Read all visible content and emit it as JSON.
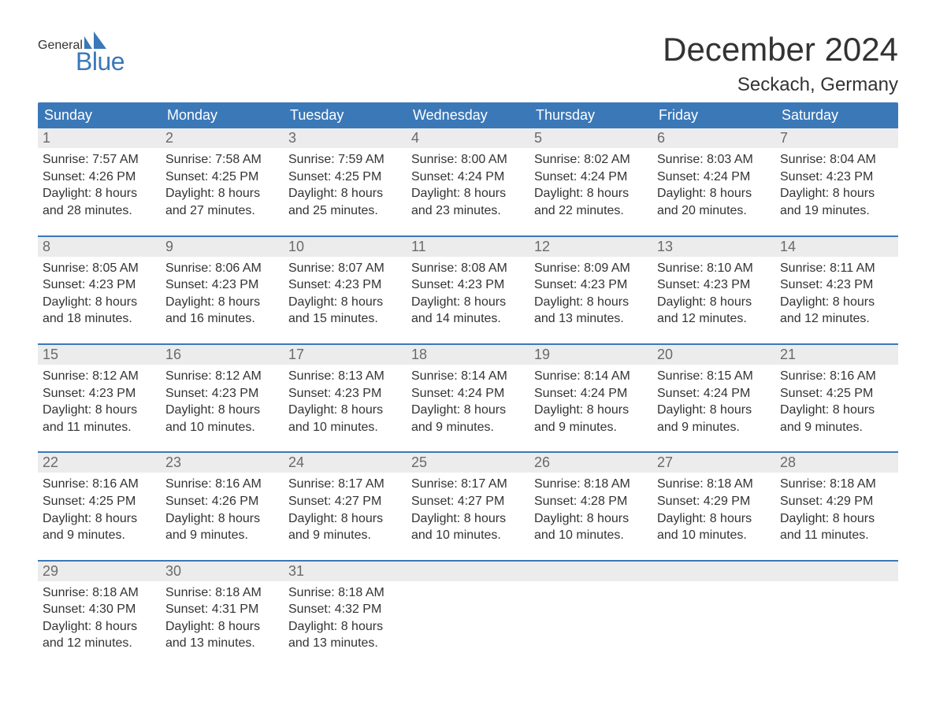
{
  "logo": {
    "text_general": "General",
    "text_blue": "Blue",
    "mark_color": "#3b78b8"
  },
  "title": "December 2024",
  "location": "Seckach, Germany",
  "colors": {
    "header_bg": "#3b78b8",
    "header_text": "#ffffff",
    "daynum_bg": "#ececec",
    "daynum_text": "#6a6a6a",
    "body_text": "#333333",
    "week_border": "#3b78b8",
    "page_bg": "#ffffff"
  },
  "weekday_headers": [
    "Sunday",
    "Monday",
    "Tuesday",
    "Wednesday",
    "Thursday",
    "Friday",
    "Saturday"
  ],
  "label_sunrise": "Sunrise:",
  "label_sunset": "Sunset:",
  "label_daylight": "Daylight:",
  "weeks": [
    [
      {
        "day": 1,
        "sunrise": "7:57 AM",
        "sunset": "4:26 PM",
        "daylight": "8 hours and 28 minutes."
      },
      {
        "day": 2,
        "sunrise": "7:58 AM",
        "sunset": "4:25 PM",
        "daylight": "8 hours and 27 minutes."
      },
      {
        "day": 3,
        "sunrise": "7:59 AM",
        "sunset": "4:25 PM",
        "daylight": "8 hours and 25 minutes."
      },
      {
        "day": 4,
        "sunrise": "8:00 AM",
        "sunset": "4:24 PM",
        "daylight": "8 hours and 23 minutes."
      },
      {
        "day": 5,
        "sunrise": "8:02 AM",
        "sunset": "4:24 PM",
        "daylight": "8 hours and 22 minutes."
      },
      {
        "day": 6,
        "sunrise": "8:03 AM",
        "sunset": "4:24 PM",
        "daylight": "8 hours and 20 minutes."
      },
      {
        "day": 7,
        "sunrise": "8:04 AM",
        "sunset": "4:23 PM",
        "daylight": "8 hours and 19 minutes."
      }
    ],
    [
      {
        "day": 8,
        "sunrise": "8:05 AM",
        "sunset": "4:23 PM",
        "daylight": "8 hours and 18 minutes."
      },
      {
        "day": 9,
        "sunrise": "8:06 AM",
        "sunset": "4:23 PM",
        "daylight": "8 hours and 16 minutes."
      },
      {
        "day": 10,
        "sunrise": "8:07 AM",
        "sunset": "4:23 PM",
        "daylight": "8 hours and 15 minutes."
      },
      {
        "day": 11,
        "sunrise": "8:08 AM",
        "sunset": "4:23 PM",
        "daylight": "8 hours and 14 minutes."
      },
      {
        "day": 12,
        "sunrise": "8:09 AM",
        "sunset": "4:23 PM",
        "daylight": "8 hours and 13 minutes."
      },
      {
        "day": 13,
        "sunrise": "8:10 AM",
        "sunset": "4:23 PM",
        "daylight": "8 hours and 12 minutes."
      },
      {
        "day": 14,
        "sunrise": "8:11 AM",
        "sunset": "4:23 PM",
        "daylight": "8 hours and 12 minutes."
      }
    ],
    [
      {
        "day": 15,
        "sunrise": "8:12 AM",
        "sunset": "4:23 PM",
        "daylight": "8 hours and 11 minutes."
      },
      {
        "day": 16,
        "sunrise": "8:12 AM",
        "sunset": "4:23 PM",
        "daylight": "8 hours and 10 minutes."
      },
      {
        "day": 17,
        "sunrise": "8:13 AM",
        "sunset": "4:23 PM",
        "daylight": "8 hours and 10 minutes."
      },
      {
        "day": 18,
        "sunrise": "8:14 AM",
        "sunset": "4:24 PM",
        "daylight": "8 hours and 9 minutes."
      },
      {
        "day": 19,
        "sunrise": "8:14 AM",
        "sunset": "4:24 PM",
        "daylight": "8 hours and 9 minutes."
      },
      {
        "day": 20,
        "sunrise": "8:15 AM",
        "sunset": "4:24 PM",
        "daylight": "8 hours and 9 minutes."
      },
      {
        "day": 21,
        "sunrise": "8:16 AM",
        "sunset": "4:25 PM",
        "daylight": "8 hours and 9 minutes."
      }
    ],
    [
      {
        "day": 22,
        "sunrise": "8:16 AM",
        "sunset": "4:25 PM",
        "daylight": "8 hours and 9 minutes."
      },
      {
        "day": 23,
        "sunrise": "8:16 AM",
        "sunset": "4:26 PM",
        "daylight": "8 hours and 9 minutes."
      },
      {
        "day": 24,
        "sunrise": "8:17 AM",
        "sunset": "4:27 PM",
        "daylight": "8 hours and 9 minutes."
      },
      {
        "day": 25,
        "sunrise": "8:17 AM",
        "sunset": "4:27 PM",
        "daylight": "8 hours and 10 minutes."
      },
      {
        "day": 26,
        "sunrise": "8:18 AM",
        "sunset": "4:28 PM",
        "daylight": "8 hours and 10 minutes."
      },
      {
        "day": 27,
        "sunrise": "8:18 AM",
        "sunset": "4:29 PM",
        "daylight": "8 hours and 10 minutes."
      },
      {
        "day": 28,
        "sunrise": "8:18 AM",
        "sunset": "4:29 PM",
        "daylight": "8 hours and 11 minutes."
      }
    ],
    [
      {
        "day": 29,
        "sunrise": "8:18 AM",
        "sunset": "4:30 PM",
        "daylight": "8 hours and 12 minutes."
      },
      {
        "day": 30,
        "sunrise": "8:18 AM",
        "sunset": "4:31 PM",
        "daylight": "8 hours and 13 minutes."
      },
      {
        "day": 31,
        "sunrise": "8:18 AM",
        "sunset": "4:32 PM",
        "daylight": "8 hours and 13 minutes."
      },
      null,
      null,
      null,
      null
    ]
  ]
}
